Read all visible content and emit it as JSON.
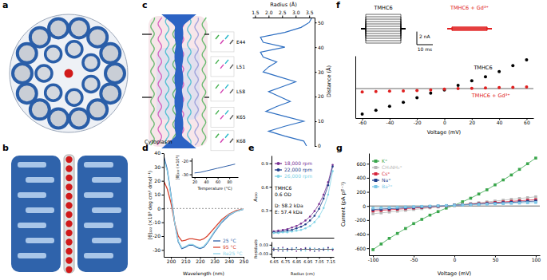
{
  "panel_labels": [
    "a",
    "b",
    "c",
    "d",
    "e",
    "f",
    "g"
  ],
  "chart_data": [
    {
      "type": "line",
      "x_label": "Radius (Å)",
      "y_label": "Distance (Å)",
      "xlim": [
        1.4,
        3.7
      ],
      "xticks": [
        1.5,
        {
          "value": 2,
          "label": "2.0"
        },
        2.5,
        {
          "value": 3,
          "label": "3.0"
        },
        3.5
      ],
      "ylim": [
        0,
        52
      ],
      "yticks": [
        0,
        10,
        20,
        30,
        40,
        50
      ],
      "series": [
        {
          "color": "#2e6fc2",
          "x": [
            3.4,
            3.3,
            2.6,
            2.0,
            2.6,
            3.3,
            2.6,
            1.9,
            2.3,
            2.8,
            2.4,
            2.0,
            2.5,
            3.0,
            2.4,
            1.8,
            2.0,
            2.3,
            1.8,
            1.7,
            2.6,
            1.8,
            1.7,
            2.6,
            3.2,
            3.5,
            3.6
          ],
          "values": [
            0,
            2,
            4,
            6,
            8,
            10,
            12,
            14,
            16,
            18,
            20,
            22,
            24,
            26,
            28,
            30,
            32,
            34,
            36,
            38,
            40,
            42,
            44,
            46,
            48,
            50,
            52
          ]
        }
      ],
      "residues": [
        {
          "text": "E44",
          "y": 42
        },
        {
          "text": "L51",
          "y": 32
        },
        {
          "text": "L58",
          "y": 22
        },
        {
          "text": "K65",
          "y": 11.5
        },
        {
          "text": "K68",
          "y": 2
        }
      ],
      "annotations": [
        "Cytoplasm"
      ]
    },
    {
      "type": "line",
      "x_label": "Wavelength (nm)",
      "y_label": "[θ]₂₂₂ (×10³ deg cm² dmol⁻¹)",
      "x": [
        195,
        197.5,
        200,
        202.5,
        205,
        207.5,
        210,
        212.5,
        215,
        217.5,
        220,
        222.5,
        225,
        230,
        235,
        240,
        245,
        250
      ],
      "xlim": [
        195,
        250
      ],
      "xticks": [
        200,
        210,
        220,
        230,
        240,
        250
      ],
      "ylim": [
        -35,
        40
      ],
      "yticks": [
        -30,
        -20,
        -10,
        0,
        10,
        20,
        30,
        40
      ],
      "hline": 0,
      "legend": "lower right",
      "series": [
        {
          "name": "25 °C",
          "color": "#2f5fa8",
          "values": [
            38,
            28,
            10,
            -10,
            -24,
            -29,
            -28,
            -26.5,
            -26.5,
            -28,
            -29,
            -28,
            -25,
            -17,
            -10,
            -5,
            -2,
            -0.5
          ]
        },
        {
          "name": "95 °C",
          "color": "#d8432f",
          "values": [
            20,
            14,
            4,
            -10,
            -20,
            -23.5,
            -23,
            -22,
            -22,
            -22.5,
            -23,
            -22,
            -20,
            -14,
            -8,
            -4,
            -1.5,
            -0.5
          ]
        },
        {
          "name": "Re25 °C",
          "color": "#8fd3e8",
          "values": [
            36,
            27,
            9,
            -10,
            -23.5,
            -28.5,
            -27.5,
            -26,
            -26,
            -27.5,
            -28.5,
            -27.5,
            -24.5,
            -16.5,
            -9.5,
            -4.5,
            -2,
            -0.5
          ]
        }
      ]
    },
    {
      "type": "line",
      "x_label": "Temperature (°C)",
      "y_label": "[θ]₂₂₂ (×10³)",
      "x": [
        20,
        30,
        40,
        50,
        60,
        70,
        80,
        90
      ],
      "xlim": [
        15,
        95
      ],
      "xticks": [
        20,
        40,
        60,
        80
      ],
      "ylim": [
        -32,
        -18
      ],
      "yticks": [
        -30,
        -20
      ],
      "series": [
        {
          "color": "#2f5fa8",
          "values": [
            -29,
            -28.5,
            -27.5,
            -26.5,
            -25.5,
            -24.5,
            -23.5,
            -22.5
          ]
        }
      ]
    },
    {
      "type": "scatter",
      "marker": "circle",
      "line_style": "solid",
      "y_label": "A₂₃₀",
      "tick_labels": "y",
      "x": [
        6.65,
        6.69,
        6.73,
        6.77,
        6.81,
        6.85,
        6.89,
        6.93,
        6.97,
        7.01,
        7.05,
        7.09,
        7.13,
        7.17
      ],
      "xlim": [
        6.63,
        7.18
      ],
      "ylim": [
        -0.05,
        1.0
      ],
      "yticks": [
        0.3,
        0.6,
        0.9
      ],
      "legend": "upper left",
      "annotations": [
        "TMHC6",
        "0.6 OD",
        "D: 58.2 kDa",
        "E: 57.4 kDa"
      ],
      "series": [
        {
          "name": "18,000 rpm",
          "color": "#7b3294",
          "values": [
            0.03,
            0.04,
            0.05,
            0.06,
            0.08,
            0.1,
            0.13,
            0.17,
            0.22,
            0.29,
            0.38,
            0.5,
            0.66,
            0.88
          ]
        },
        {
          "name": "22,000 rpm",
          "color": "#1f3c88",
          "values": [
            0.02,
            0.02,
            0.03,
            0.04,
            0.05,
            0.07,
            0.09,
            0.12,
            0.17,
            0.23,
            0.32,
            0.45,
            0.62,
            0.86
          ]
        },
        {
          "name": "26,000 rpm",
          "color": "#7fd3e6",
          "values": [
            0.01,
            0.01,
            0.02,
            0.02,
            0.03,
            0.04,
            0.05,
            0.07,
            0.1,
            0.15,
            0.22,
            0.33,
            0.5,
            0.8
          ]
        }
      ]
    },
    {
      "type": "scatter",
      "marker": "circle",
      "x_label": "Radius (cm)",
      "y_label": "Residuals",
      "x": [
        6.65,
        6.69,
        6.73,
        6.77,
        6.81,
        6.85,
        6.89,
        6.93,
        6.97,
        7.01,
        7.05,
        7.09,
        7.13,
        7.17
      ],
      "xlim": [
        6.63,
        7.18
      ],
      "xticks": [
        6.65,
        6.75,
        6.85,
        6.95,
        7.05,
        7.15
      ],
      "ylim": [
        -0.05,
        0.05
      ],
      "yticks": [
        -0.03,
        0.03
      ],
      "hline": 0,
      "series": [
        {
          "color": "#7b3294",
          "values": [
            0.005,
            -0.01,
            0.012,
            -0.004,
            0.008,
            -0.012,
            0.003,
            0.01,
            -0.008,
            0.006,
            -0.01,
            0.004,
            0.012,
            -0.006
          ]
        },
        {
          "color": "#1f3c88",
          "values": [
            -0.006,
            0.009,
            -0.011,
            0.004,
            -0.002,
            0.01,
            -0.009,
            0.005,
            0.007,
            -0.012,
            0.003,
            -0.005,
            0.009,
            0.002
          ]
        },
        {
          "color": "#7fd3e6",
          "values": [
            0.01,
            -0.004,
            0.006,
            -0.013,
            0.009,
            0.002,
            -0.007,
            -0.01,
            0.011,
            0.004,
            -0.003,
            0.008,
            -0.009,
            0.006
          ]
        }
      ]
    },
    {
      "type": "scatter",
      "marker": "circle",
      "x_label": "Voltage (mV)",
      "tick_labels": "x",
      "x": [
        -60,
        -50,
        -40,
        -30,
        -20,
        -10,
        0,
        10,
        20,
        30,
        40,
        50,
        60
      ],
      "xlim": [
        -65,
        65
      ],
      "xticks": [
        -60,
        -40,
        -20,
        0,
        20,
        40,
        60
      ],
      "ylim": [
        -4.5,
        5
      ],
      "hline": 0,
      "inset_titles": [
        "TMHC6",
        "TMHC6 + Gd³⁺"
      ],
      "scale_bars": [
        {
          "label": "2 nA",
          "value": 2
        },
        {
          "label": "10 ms"
        }
      ],
      "annotations": [
        {
          "text": "TMHC6",
          "x": 35,
          "y": 2.9
        },
        {
          "text": "TMHC6 + Gd³⁺",
          "x": 20,
          "y": -1.3
        }
      ],
      "series": [
        {
          "color": "#000000",
          "values": [
            -3.9,
            -3.3,
            -2.7,
            -2.1,
            -1.4,
            -0.7,
            -0.2,
            0.5,
            1.2,
            1.8,
            2.6,
            3.5,
            4.4
          ]
        },
        {
          "color": "#e02020",
          "values": [
            -0.5,
            -0.45,
            -0.4,
            -0.35,
            -0.3,
            -0.2,
            -0.1,
            0,
            0.05,
            0.1,
            0.15,
            0.2,
            0.25
          ]
        }
      ]
    },
    {
      "type": "scatter",
      "marker": "square",
      "line_style": "solid",
      "x_label": "Voltage (mV)",
      "y_label": "Current (pA pF⁻¹)",
      "x": [
        -100,
        -90,
        -80,
        -70,
        -60,
        -50,
        -40,
        -30,
        -20,
        -10,
        0,
        10,
        20,
        30,
        40,
        50,
        60,
        70,
        80,
        90,
        100
      ],
      "xlim": [
        -105,
        105
      ],
      "xticks": [
        -100,
        -50,
        0,
        50,
        100
      ],
      "ylim": [
        -700,
        750
      ],
      "yticks": [
        -600,
        -400,
        -200,
        0,
        200,
        400,
        600
      ],
      "hline": 0,
      "legend": "upper left",
      "series": [
        {
          "name": "K⁺",
          "color": "#3aa64c",
          "values": [
            -620,
            -540,
            -460,
            -390,
            -320,
            -250,
            -190,
            -130,
            -80,
            -30,
            10,
            60,
            110,
            170,
            230,
            300,
            370,
            440,
            520,
            600,
            680
          ]
        },
        {
          "name": "CH₃NH₃⁺",
          "color": "#b8b8b8",
          "values": [
            -110,
            -98,
            -86,
            -74,
            -62,
            -50,
            -38,
            -26,
            -14,
            -2,
            10,
            22,
            34,
            46,
            58,
            70,
            82,
            94,
            106,
            118,
            130
          ]
        },
        {
          "name": "Cs⁺",
          "color": "#d7263d",
          "values": [
            -70,
            -62,
            -54,
            -46,
            -38,
            -30,
            -22,
            -14,
            -6,
            2,
            10,
            18,
            26,
            34,
            42,
            50,
            58,
            66,
            74,
            82,
            90
          ]
        },
        {
          "name": "Na⁺",
          "color": "#1f3f8c",
          "values": [
            -50,
            -44,
            -38,
            -32,
            -26,
            -20,
            -14,
            -8,
            -2,
            4,
            10,
            16,
            22,
            28,
            34,
            40,
            46,
            52,
            58,
            64,
            70
          ]
        },
        {
          "name": "Ba²⁺",
          "color": "#7ec8e8",
          "values": [
            -30,
            -26,
            -22,
            -18,
            -14,
            -10,
            -6,
            -2,
            2,
            6,
            10,
            14,
            18,
            22,
            26,
            30,
            34,
            38,
            42,
            46,
            50
          ]
        }
      ]
    }
  ]
}
